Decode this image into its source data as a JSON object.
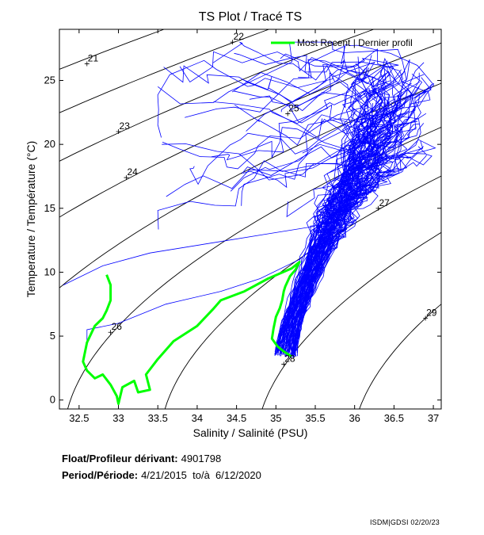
{
  "chart_data": {
    "type": "line",
    "title": "TS Plot / Tracé TS",
    "xlabel": "Salinity / Salinité (PSU)",
    "ylabel": "Temperature / Température (°C)",
    "xlim": [
      32.25,
      37.1
    ],
    "ylim": [
      -0.7,
      29
    ],
    "xticks": [
      32.5,
      33,
      33.5,
      34,
      34.5,
      35,
      35.5,
      36,
      36.5,
      37
    ],
    "yticks": [
      0,
      5,
      10,
      15,
      20,
      25
    ],
    "grid": false,
    "legend": {
      "position": "top-right",
      "entries": [
        "Most Recent | Dernier profil"
      ]
    },
    "density_contours": [
      {
        "label": "21",
        "sigma": 21,
        "label_at": [
          32.6,
          26.3
        ]
      },
      {
        "label": "22",
        "sigma": 22,
        "label_at": [
          34.45,
          28.0
        ]
      },
      {
        "label": "23",
        "sigma": 23,
        "label_at": [
          33.0,
          21.0
        ]
      },
      {
        "label": "24",
        "sigma": 24,
        "label_at": [
          33.1,
          17.4
        ]
      },
      {
        "label": "25",
        "sigma": 25,
        "label_at": [
          35.15,
          22.4
        ]
      },
      {
        "label": "26",
        "sigma": 26,
        "label_at": [
          32.9,
          5.3
        ]
      },
      {
        "label": "27",
        "sigma": 27,
        "label_at": [
          36.3,
          15.0
        ]
      },
      {
        "label": "28",
        "sigma": 28,
        "label_at": [
          35.1,
          2.8
        ]
      },
      {
        "label": "29",
        "sigma": 29,
        "label_at": [
          36.9,
          6.4
        ]
      }
    ],
    "series": [
      {
        "name": "Most Recent | Dernier profil",
        "color": "#00ff00",
        "x": [
          35.2,
          35.1,
          35.02,
          34.95,
          34.97,
          35.0,
          35.05,
          35.08,
          35.1,
          35.12,
          35.15,
          35.18,
          35.25,
          35.3,
          35.2,
          34.9,
          34.6,
          34.3,
          34.2,
          34.0,
          33.7,
          33.5,
          33.35,
          33.4,
          33.25,
          33.2,
          33.05,
          33.0,
          32.98,
          32.9,
          32.8,
          32.7,
          32.6,
          32.55,
          32.6,
          32.7,
          32.8,
          32.85,
          32.9,
          32.9,
          32.85
        ],
        "y": [
          3.4,
          3.8,
          4.2,
          4.8,
          5.6,
          6.5,
          7.2,
          7.8,
          8.5,
          8.9,
          9.3,
          9.7,
          10.2,
          10.8,
          10.3,
          9.5,
          8.5,
          7.8,
          7.1,
          5.8,
          4.6,
          3.2,
          2.0,
          0.8,
          0.6,
          1.5,
          1.0,
          -0.3,
          0.3,
          1.2,
          2.0,
          1.7,
          2.3,
          3.0,
          4.5,
          5.8,
          6.4,
          7.0,
          7.8,
          9.0,
          9.8
        ]
      }
    ]
  },
  "info": {
    "float_label": "Float/Profileur dérivant:",
    "float_id": "4901798",
    "period_label": "Period/Période:",
    "period_value": "4/21/2015  to/à  6/12/2020"
  },
  "footer": {
    "left": "ISDM",
    "sep": "|",
    "middle": "GDSI",
    "date": "02/20/23"
  },
  "colors": {
    "history": "#0000ff",
    "recent": "#00ff00",
    "contour": "#000000"
  }
}
